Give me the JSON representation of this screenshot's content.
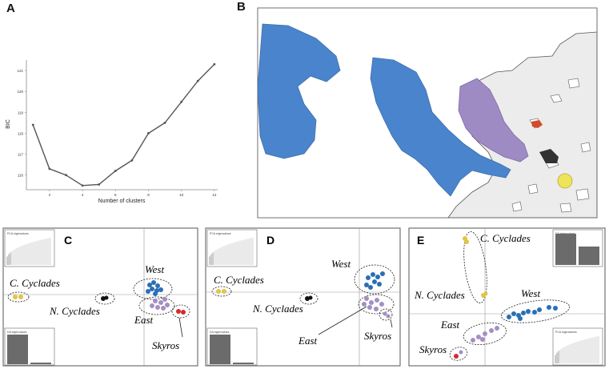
{
  "panels": {
    "a": {
      "label": "A"
    },
    "b": {
      "label": "B"
    },
    "c": {
      "label": "C"
    },
    "d": {
      "label": "D"
    },
    "e": {
      "label": "E"
    }
  },
  "chart_data": {
    "type": "line",
    "xlabel": "Number of clusters",
    "ylabel": "BIC",
    "x": [
      1,
      2,
      3,
      4,
      5,
      6,
      7,
      8,
      9,
      10,
      11,
      12
    ],
    "y": [
      118.4,
      116.3,
      116.0,
      115.5,
      115.55,
      116.2,
      116.7,
      118.0,
      118.5,
      119.5,
      120.5,
      121.3
    ],
    "xticks": [
      "2",
      "4",
      "6",
      "8",
      "10",
      "12"
    ],
    "yticks": [
      "116",
      "117",
      "118",
      "119",
      "120",
      "121"
    ],
    "ylim": [
      115.3,
      121.5
    ],
    "xlim": [
      0.6,
      12.2
    ]
  },
  "inset_labels": {
    "pca": "PCA eigenvalues",
    "da": "DA eigenvalues"
  },
  "groups": {
    "c_cyclades": "C. Cyclades",
    "n_cyclades": "N. Cyclades",
    "west": "West",
    "east": "East",
    "skyros": "Skyros"
  },
  "colors": {
    "west": "#2a6fb5",
    "east": "#a48fc3",
    "skyros": "#d6292f",
    "c_cyclades": "#e3c443",
    "n_cyclades": "#111111",
    "map_west": "#4a84cc",
    "map_east": "#9e8bc4",
    "map_land": "#ffffff",
    "map_coast": "#555555"
  }
}
